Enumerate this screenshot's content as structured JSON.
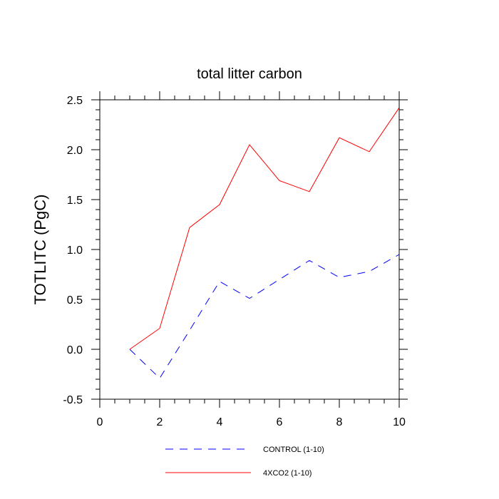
{
  "chart_data": {
    "type": "line",
    "title": "total litter carbon",
    "xlabel": "",
    "ylabel": "TOTLITC  (PgC)",
    "xlim": [
      0,
      10
    ],
    "ylim": [
      -0.5,
      2.5
    ],
    "x_ticks": [
      0,
      2,
      4,
      6,
      8,
      10
    ],
    "y_ticks": [
      -0.5,
      0.0,
      0.5,
      1.0,
      1.5,
      2.0,
      2.5
    ],
    "x_tick_labels": [
      "0",
      "2",
      "4",
      "6",
      "8",
      "10"
    ],
    "y_tick_labels": [
      "-0.5",
      "0.0",
      "0.5",
      "1.0",
      "1.5",
      "2.0",
      "2.5"
    ],
    "grid": false,
    "legend_position": "bottom",
    "x": [
      1,
      2,
      3,
      4,
      5,
      6,
      7,
      8,
      9,
      10
    ],
    "series": [
      {
        "name": "CONTROL (1-10)",
        "color": "#0000ff",
        "style": "dashed",
        "values": [
          0.0,
          -0.29,
          0.19,
          0.68,
          0.51,
          0.7,
          0.89,
          0.72,
          0.78,
          0.95
        ]
      },
      {
        "name": "4XCO2 (1-10)",
        "color": "#ff0000",
        "style": "solid",
        "values": [
          0.0,
          0.21,
          1.22,
          1.45,
          2.05,
          1.69,
          1.58,
          2.12,
          1.98,
          2.42
        ]
      }
    ]
  }
}
